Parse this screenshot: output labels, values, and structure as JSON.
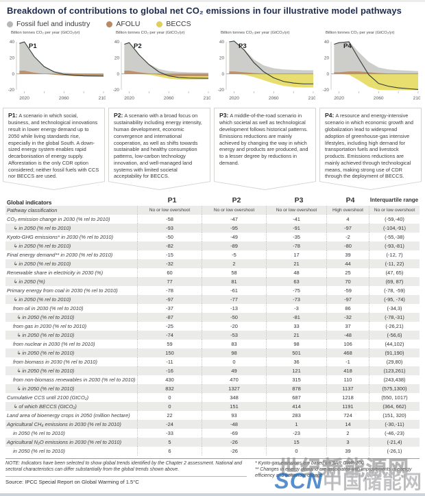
{
  "header": {
    "title": "Breakdown of contributions to global net CO₂ emissions in four illustrative model pathways",
    "legend": [
      {
        "label": "Fossil fuel and industry",
        "color": "#b7b7b4"
      },
      {
        "label": "AFOLU",
        "color": "#b98a63"
      },
      {
        "label": "BECCS",
        "color": "#ddd05e"
      }
    ]
  },
  "charts": {
    "axis_label": "Billion tonnes CO₂ per year (GtCO₂/yr)",
    "colors": {
      "fossil": "#c6c6c2",
      "afolu": "#bd8a62",
      "beccs": "#e6da5f",
      "net_line": "#2f3b38"
    }
  },
  "chart_data": [
    {
      "type": "area",
      "name": "P1",
      "x": [
        2015,
        2020,
        2030,
        2040,
        2050,
        2060,
        2070,
        2080,
        2090,
        2100
      ],
      "x_ticks": [
        2020,
        2060,
        2100
      ],
      "y_ticks": [
        40,
        20,
        0,
        -20
      ],
      "ylim": [
        -20,
        40
      ],
      "ylabel": "Billion tonnes CO₂ per year (GtCO₂/yr)",
      "series": [
        {
          "name": "Fossil fuel and industry",
          "values": [
            34,
            36,
            20,
            9,
            3.5,
            1.5,
            0.8,
            0.5,
            0.3,
            0.2
          ]
        },
        {
          "name": "AFOLU",
          "values": [
            4,
            4,
            1.5,
            0,
            -1,
            -2,
            -2.5,
            -3,
            -3,
            -3
          ]
        },
        {
          "name": "BECCS",
          "values": [
            0,
            0,
            0,
            0,
            0,
            0,
            0,
            0,
            0,
            0
          ]
        }
      ]
    },
    {
      "type": "area",
      "name": "P2",
      "x": [
        2015,
        2020,
        2030,
        2040,
        2050,
        2060,
        2070,
        2080,
        2090,
        2100
      ],
      "x_ticks": [
        2020,
        2060,
        2100
      ],
      "y_ticks": [
        40,
        20,
        0,
        -20
      ],
      "ylim": [
        -20,
        40
      ],
      "ylabel": "Billion tonnes CO₂ per year (GtCO₂/yr)",
      "series": [
        {
          "name": "Fossil fuel and industry",
          "values": [
            33,
            35,
            22,
            12,
            6,
            3.5,
            2.5,
            2,
            1.8,
            1.5
          ]
        },
        {
          "name": "AFOLU",
          "values": [
            4,
            4,
            2,
            0.5,
            -1,
            -2.5,
            -3,
            -3,
            -3,
            -3
          ]
        },
        {
          "name": "BECCS",
          "values": [
            0,
            0,
            -0.3,
            -1,
            -2.5,
            -3.5,
            -4,
            -4.2,
            -4.2,
            -4
          ]
        }
      ]
    },
    {
      "type": "area",
      "name": "P3",
      "x": [
        2015,
        2020,
        2030,
        2040,
        2050,
        2060,
        2070,
        2080,
        2090,
        2100
      ],
      "x_ticks": [
        2020,
        2060,
        2100
      ],
      "y_ticks": [
        40,
        20,
        0,
        -20
      ],
      "ylim": [
        -20,
        40
      ],
      "ylabel": "Billion tonnes CO₂ per year (GtCO₂/yr)",
      "series": [
        {
          "name": "Fossil fuel and industry",
          "values": [
            37,
            39,
            29,
            17,
            10,
            7,
            5.5,
            5,
            4.5,
            4.5
          ]
        },
        {
          "name": "AFOLU",
          "values": [
            3,
            3,
            2,
            1,
            0.5,
            0,
            0,
            0,
            0,
            0
          ]
        },
        {
          "name": "BECCS",
          "values": [
            0,
            0,
            -1,
            -4,
            -8,
            -12,
            -15,
            -16.5,
            -17,
            -17
          ]
        }
      ]
    },
    {
      "type": "area",
      "name": "P4",
      "x": [
        2015,
        2020,
        2030,
        2040,
        2050,
        2060,
        2070,
        2080,
        2090,
        2100
      ],
      "x_ticks": [
        2020,
        2060,
        2100
      ],
      "y_ticks": [
        40,
        20,
        0,
        -20
      ],
      "ylim": [
        -20,
        40
      ],
      "ylabel": "Billion tonnes CO₂ per year (GtCO₂/yr)",
      "series": [
        {
          "name": "Fossil fuel and industry",
          "values": [
            35,
            37,
            38,
            24,
            13,
            7,
            5,
            4,
            3.5,
            3
          ]
        },
        {
          "name": "AFOLU",
          "values": [
            2,
            2,
            3,
            3,
            2,
            1,
            0.5,
            0.5,
            0.5,
            0.5
          ]
        },
        {
          "name": "BECCS",
          "values": [
            0,
            0,
            -1,
            -8,
            -16,
            -20,
            -21,
            -22,
            -22.5,
            -23
          ]
        }
      ]
    }
  ],
  "descriptions": [
    {
      "id": "P1:",
      "text": "A scenario in which social, business, and technological innovations result in lower energy demand up to 2050 while living standards rise, especially in the global South. A down-sized energy system enables rapid decarbonisation of energy supply. Afforestation is the only CDR option considered; neither fossil fuels with CCS nor BECCS are used."
    },
    {
      "id": "P2:",
      "text": "A scenario with a broad focus on sustainability including energy intensity, human development, economic convergence and international cooperation, as well as shifts towards sustainable and healthy consumption patterns, low-carbon technology innovation, and well-managed land systems with limited societal acceptability for BECCS."
    },
    {
      "id": "P3:",
      "text": "A middle-of-the-road scenario in which societal as well as technological development follows historical patterns. Emissions reductions are mainly achieved by changing the way in which energy and products are produced, and to a lesser degree by reductions in demand."
    },
    {
      "id": "P4:",
      "text": "A resource and energy-intensive scenario in which economic growth and globalization lead to widespread adoption of greenhouse-gas intensive lifestyles, including high demand for transportation fuels and livestock products. Emissions reductions are mainly achieved through technological means, making strong use of CDR through the deployment of BECCS."
    }
  ],
  "table": {
    "columns": [
      "Global indicators",
      "P1",
      "P2",
      "P3",
      "P4",
      "Interquartile range"
    ],
    "classification": {
      "label": "Pathway classification",
      "values": [
        "No or low overshoot",
        "No or low overshoot",
        "No or low overshoot",
        "High overshoot",
        "No or low overshoot"
      ]
    },
    "rows": [
      {
        "label": "CO₂ emission change in 2030 (% rel to 2010)",
        "indent": 0,
        "arrow": false,
        "values": [
          "-58",
          "-47",
          "-41",
          "4",
          "(-59,-40)"
        ]
      },
      {
        "label": "in 2050 (% rel to 2010)",
        "indent": 1,
        "arrow": true,
        "values": [
          "-93",
          "-95",
          "-91",
          "-97",
          "(-104,-91)"
        ]
      },
      {
        "label": "Kyoto-GHG emissions* in 2030 (% rel to 2010)",
        "indent": 0,
        "arrow": false,
        "values": [
          "-50",
          "-49",
          "-35",
          "-2",
          "(-55,-38)"
        ]
      },
      {
        "label": "in 2050 (% rel to 2010)",
        "indent": 1,
        "arrow": true,
        "values": [
          "-82",
          "-89",
          "-78",
          "-80",
          "(-93,-81)"
        ]
      },
      {
        "label": "Final energy demand** in 2030 (% rel to 2010)",
        "indent": 0,
        "arrow": false,
        "values": [
          "-15",
          "-5",
          "17",
          "39",
          "(-12, 7)"
        ]
      },
      {
        "label": "in 2050 (% rel to 2010)",
        "indent": 1,
        "arrow": true,
        "values": [
          "-32",
          "2",
          "21",
          "44",
          "(-11, 22)"
        ]
      },
      {
        "label": "Renewable share in electricity in 2030 (%)",
        "indent": 0,
        "arrow": false,
        "values": [
          "60",
          "58",
          "48",
          "25",
          "(47, 65)"
        ]
      },
      {
        "label": "in 2050 (%)",
        "indent": 1,
        "arrow": true,
        "values": [
          "77",
          "81",
          "63",
          "70",
          "(69, 87)"
        ]
      },
      {
        "label": "Primary energy from coal in 2030 (% rel to 2010)",
        "indent": 0,
        "arrow": false,
        "values": [
          "-78",
          "-61",
          "-75",
          "-59",
          "(-78, -59)"
        ]
      },
      {
        "label": "in 2050 (% rel to 2010)",
        "indent": 1,
        "arrow": true,
        "values": [
          "-97",
          "-77",
          "-73",
          "-97",
          "(-95, -74)"
        ]
      },
      {
        "label": "from oil in 2030 (% rel to 2010)",
        "indent": 1,
        "arrow": false,
        "values": [
          "-37",
          "-13",
          "-3",
          "86",
          "(-34,3)"
        ]
      },
      {
        "label": "in 2050 (% rel to 2010)",
        "indent": 2,
        "arrow": true,
        "values": [
          "-87",
          "-50",
          "-81",
          "-32",
          "(-78,-31)"
        ]
      },
      {
        "label": "from gas in 2030 (% rel to 2010)",
        "indent": 1,
        "arrow": false,
        "values": [
          "-25",
          "-20",
          "33",
          "37",
          "(-26,21)"
        ]
      },
      {
        "label": "in 2050 (% rel to 2010)",
        "indent": 2,
        "arrow": true,
        "values": [
          "-74",
          "-53",
          "21",
          "-48",
          "(-56,6)"
        ]
      },
      {
        "label": "from nuclear in 2030 (% rel to 2010)",
        "indent": 1,
        "arrow": false,
        "values": [
          "59",
          "83",
          "98",
          "106",
          "(44,102)"
        ]
      },
      {
        "label": "in 2050 (% rel to 2010)",
        "indent": 2,
        "arrow": true,
        "values": [
          "150",
          "98",
          "501",
          "468",
          "(91,190)"
        ]
      },
      {
        "label": "from biomass in 2030 (% rel to 2010)",
        "indent": 1,
        "arrow": false,
        "values": [
          "-11",
          "0",
          "36",
          "-1",
          "(29,80)"
        ]
      },
      {
        "label": "in 2050 (% rel to 2010)",
        "indent": 2,
        "arrow": true,
        "values": [
          "-16",
          "49",
          "121",
          "418",
          "(123,261)"
        ]
      },
      {
        "label": "from non-biomass renewables in 2030 (% rel to 2010)",
        "indent": 1,
        "arrow": false,
        "values": [
          "430",
          "470",
          "315",
          "110",
          "(243,438)"
        ]
      },
      {
        "label": "in 2050 (% rel to 2010)",
        "indent": 2,
        "arrow": true,
        "values": [
          "832",
          "1327",
          "878",
          "1137",
          "(575,1300)"
        ]
      },
      {
        "label": "Cumulative CCS until 2100 (GtCO₂)",
        "indent": 0,
        "arrow": false,
        "values": [
          "0",
          "348",
          "687",
          "1218",
          "(550, 1017)"
        ]
      },
      {
        "label": "of which BECCS (GtCO₂)",
        "indent": 1,
        "arrow": true,
        "values": [
          "0",
          "151",
          "414",
          "1191",
          "(364, 662)"
        ]
      },
      {
        "label": "Land area of bioenergy crops in 2050 (million hectare)",
        "indent": 0,
        "arrow": false,
        "values": [
          "22",
          "93",
          "283",
          "724",
          "(151, 320)"
        ]
      },
      {
        "label": "Agricultural CH₄ emissions in 2030 (% rel to 2010)",
        "indent": 0,
        "arrow": false,
        "values": [
          "-24",
          "-48",
          "1",
          "14",
          "(-30,-11)"
        ]
      },
      {
        "label": "in 2050 (% rel to 2010)",
        "indent": 1,
        "arrow": false,
        "values": [
          "-33",
          "-69",
          "-23",
          "2",
          "(-46,-23)"
        ]
      },
      {
        "label": "Agricultural N₂O emissions in 2030 (% rel to 2010)",
        "indent": 0,
        "arrow": false,
        "values": [
          "5",
          "-26",
          "15",
          "3",
          "(-21,4)"
        ]
      },
      {
        "label": "in 2050 (% rel to 2010)",
        "indent": 1,
        "arrow": false,
        "values": [
          "6",
          "-26",
          "0",
          "39",
          "(-26,1)"
        ]
      }
    ]
  },
  "footer": {
    "note": "NOTE: Indicators have been selected to show global trends identified by the Chapter 2 assessment. National and sectoral characteristics can differ substantially from the global trends shown above.",
    "footnote1": "* Kyoto-gas emissions are based on SAR GWP-100",
    "footnote2": "** Changes in energy demand are associated with improvements in energy efficiency and behaviour change",
    "source": "Source: IPCC Special Report on Global Warming of 1.5°C"
  },
  "watermarks": {
    "top": "世纪新能源网",
    "scn": "SCN",
    "cn": "中国储能网"
  }
}
